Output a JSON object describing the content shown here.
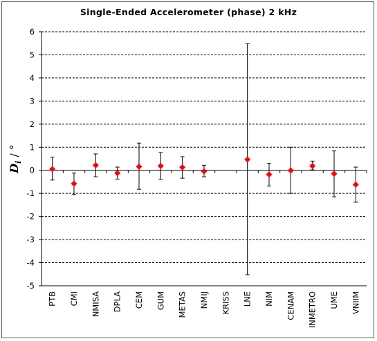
{
  "chart_data": {
    "type": "scatter",
    "title": "Single-Ended  Accelerometer  (phase)   2 kHz",
    "ylabel": {
      "main": "D",
      "sub": "i",
      "unit": " / °"
    },
    "ylim": [
      -5,
      6
    ],
    "yticks": [
      -5,
      -4,
      -3,
      -2,
      -1,
      0,
      1,
      2,
      3,
      4,
      5,
      6
    ],
    "ytick_labels": [
      "-5",
      "-4",
      "-3",
      "-2",
      "-1",
      "0",
      "1",
      "2",
      "3",
      "4",
      "5",
      "6"
    ],
    "grid": "horizontal-dashed",
    "categories": [
      "PTB",
      "CMI",
      "NMISA",
      "DPLA",
      "CEM",
      "GUM",
      "METAS",
      "NMIJ",
      "KRISS",
      "LNE",
      "NIM",
      "CENAM",
      "INMETRO",
      "UME",
      "VNIIM"
    ],
    "values": [
      0.05,
      -0.58,
      0.22,
      -0.12,
      0.16,
      0.19,
      0.13,
      -0.04,
      null,
      0.47,
      -0.18,
      -0.01,
      0.19,
      -0.15,
      -0.62
    ],
    "error_low": [
      -0.42,
      -1.05,
      -0.28,
      -0.38,
      -0.82,
      -0.39,
      -0.34,
      -0.28,
      null,
      -4.52,
      -0.68,
      -1.0,
      0.02,
      -1.15,
      -1.38
    ],
    "error_high": [
      0.57,
      -0.12,
      0.71,
      0.14,
      1.18,
      0.77,
      0.59,
      0.22,
      null,
      5.48,
      0.3,
      1.0,
      0.4,
      0.84,
      0.14
    ],
    "marker_color": "#ff0000",
    "errorbar_color": "#000000"
  }
}
